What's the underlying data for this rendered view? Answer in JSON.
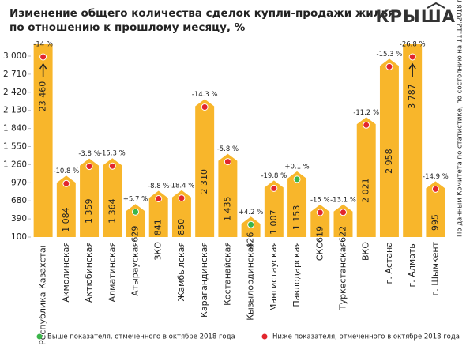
{
  "chart_data": {
    "type": "arrow-bar",
    "title": "Изменение общего количества сделок купли-продажи жилья",
    "subtitle": "по отношению к прошлому месяцу, %",
    "logo": "КРЫША",
    "source_note": "По данным Комитета по статистике, по состоянию на 11.12.2018 г.",
    "categories": [
      "Республика Казахстан",
      "Акмолинская",
      "Актюбинская",
      "Алматинская",
      "Атырауская",
      "ЗКО",
      "Жамбылская",
      "Карагандинская",
      "Костанайская",
      "Кызылординская",
      "Мангистауская",
      "Павлодарская",
      "СКО",
      "Туркестанская",
      "ВКО",
      "г. Астана",
      "г. Алматы",
      "г. Шымкент"
    ],
    "values": [
      23460,
      1084,
      1359,
      1364,
      629,
      841,
      850,
      2310,
      1435,
      426,
      1007,
      1153,
      619,
      622,
      2021,
      2958,
      3787,
      995
    ],
    "value_labels": [
      "23 460",
      "1 084",
      "1 359",
      "1 364",
      "629",
      "841",
      "850",
      "2 310",
      "1 435",
      "426",
      "1 007",
      "1 153",
      "619",
      "622",
      "2 021",
      "2 958",
      "3 787",
      "995"
    ],
    "changes": [
      -14,
      -10.8,
      -3.8,
      -15.3,
      5.7,
      -8.8,
      -18.4,
      -14.3,
      -5.8,
      4.2,
      -19.8,
      0.1,
      -15,
      -13.1,
      -11.2,
      -15.3,
      -26.8,
      -14.9
    ],
    "change_labels": [
      "-14 %",
      "-10.8 %",
      "-3.8 %",
      "-15.3 %",
      "+5.7 %",
      "-8.8 %",
      "-18.4 %",
      "-14.3 %",
      "-5.8 %",
      "+4.2 %",
      "-19.8 %",
      "+0.1 %",
      "-15 %",
      "-13.1 %",
      "-11.2 %",
      "-15.3 %",
      "-26.8 %",
      "-14.9 %"
    ],
    "dot_colors": [
      "#e2262d",
      "#e2262d",
      "#e2262d",
      "#e2262d",
      "#3bb54a",
      "#e2262d",
      "#e2262d",
      "#e2262d",
      "#e2262d",
      "#3bb54a",
      "#e2262d",
      "#3bb54a",
      "#e2262d",
      "#e2262d",
      "#e2262d",
      "#e2262d",
      "#e2262d",
      "#e2262d"
    ],
    "color": "#f8b62b",
    "ylim": [
      100,
      3000
    ],
    "yticks": [
      100,
      390,
      680,
      970,
      {
        "value": 1260,
        "label": "1 260"
      },
      {
        "value": 1550,
        "label": "1 550"
      },
      {
        "value": 1840,
        "label": "1 840"
      },
      {
        "value": 2130,
        "label": "2 130"
      },
      {
        "value": 2420,
        "label": "2 420"
      },
      {
        "value": 2710,
        "label": "2 710"
      },
      {
        "value": 3000,
        "label": "3 000"
      }
    ],
    "legend": [
      {
        "name": "Выше показателя, отмеченного в октябре 2018 года",
        "color": "#3bb54a"
      },
      {
        "name": "Ниже показателя, отмеченного в октябре 2018 года",
        "color": "#e2262d"
      }
    ]
  }
}
